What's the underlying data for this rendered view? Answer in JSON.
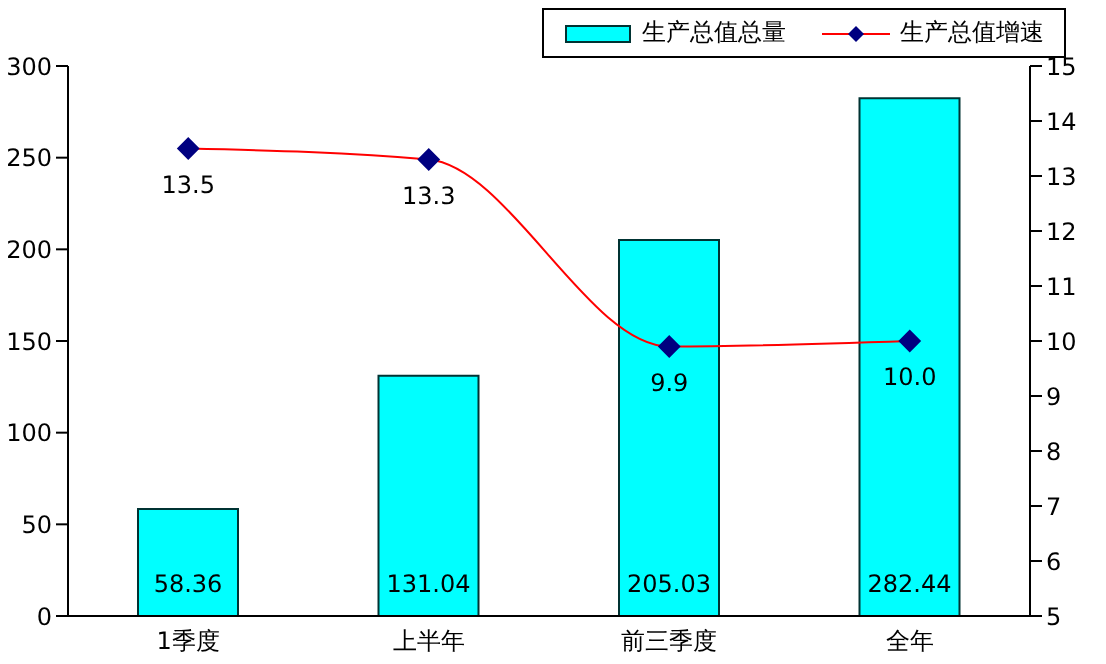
{
  "chart_data": {
    "type": "bar",
    "categories": [
      "1季度",
      "上半年",
      "前三季度",
      "全年"
    ],
    "series": [
      {
        "name": "生产总值总量",
        "color": "#00ffff",
        "values": [
          58.36,
          131.04,
          205.03,
          282.44
        ],
        "value_labels": [
          "58.36",
          "131.04",
          "205.03",
          "282.44"
        ]
      },
      {
        "name": "生产总值增速",
        "type": "line",
        "axis": "y2",
        "color": "#ff0000",
        "marker": "diamond",
        "values": [
          13.5,
          13.3,
          9.9,
          10.0
        ],
        "value_labels": [
          "13.5",
          "13.3",
          "9.9",
          "10.0"
        ]
      }
    ],
    "ylim": [
      0,
      300
    ],
    "yticks": [
      0,
      50,
      100,
      150,
      200,
      250,
      300
    ],
    "y2lim": [
      5,
      15
    ],
    "y2ticks": [
      5,
      6,
      7,
      8,
      9,
      10,
      11,
      12,
      13,
      14,
      15
    ],
    "grid": false,
    "legend": "top right"
  }
}
